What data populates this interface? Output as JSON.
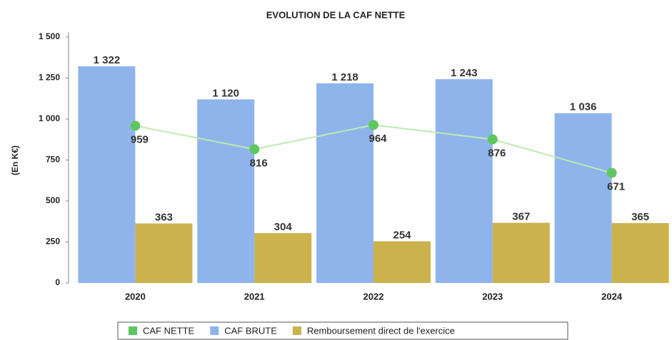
{
  "chart_data": {
    "type": "bar",
    "title": "EVOLUTION DE LA CAF NETTE",
    "y_label": "(En K€)",
    "categories": [
      "2020",
      "2021",
      "2022",
      "2023",
      "2024"
    ],
    "ylim": [
      0,
      1500
    ],
    "yticks": [
      0,
      250,
      500,
      750,
      {
        "value": 1000,
        "label": "1 000"
      },
      {
        "value": 1250,
        "label": "1 250"
      },
      {
        "value": 1500,
        "label": "1 500"
      }
    ],
    "legend": "bottom",
    "series": [
      {
        "name": "CAF NETTE",
        "type": "line",
        "color": "#5fc65f",
        "values": [
          959,
          816,
          964,
          876,
          671
        ]
      },
      {
        "name": "CAF BRUTE",
        "type": "bar",
        "color": "#8fb4ec",
        "values": [
          1322,
          1120,
          1218,
          1243,
          1036
        ],
        "value_labels": [
          "1 322",
          "1 120",
          "1 218",
          "1 243",
          "1 036"
        ]
      },
      {
        "name": "Remboursement direct de l'exercice",
        "type": "bar",
        "color": "#cbb24c",
        "values": [
          363,
          304,
          254,
          367,
          365
        ]
      }
    ]
  }
}
